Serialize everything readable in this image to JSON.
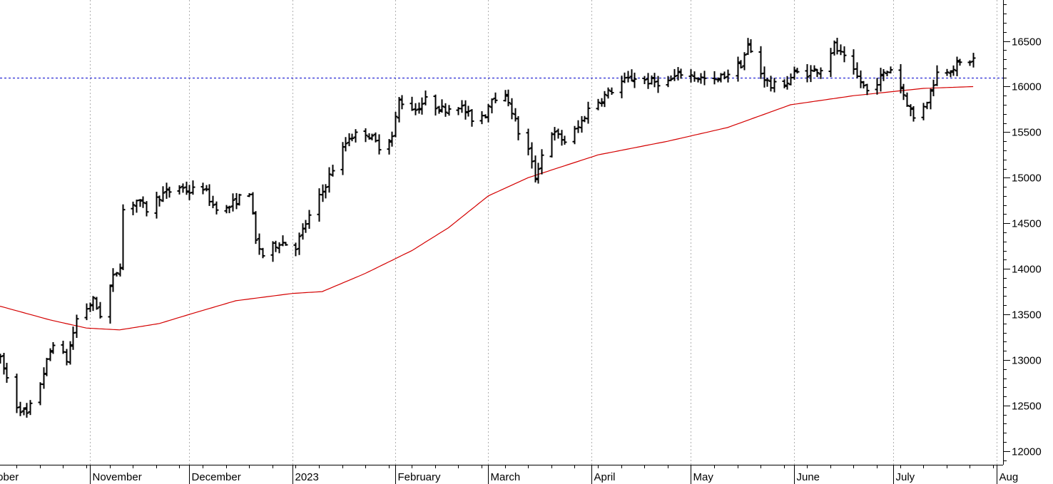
{
  "chart_data": {
    "type": "ohlc",
    "title": "",
    "xlabel": "",
    "ylabel": "",
    "ylim": [
      11850,
      16950
    ],
    "y_ticks": [
      12000,
      12500,
      13000,
      13500,
      14000,
      14500,
      15000,
      15500,
      16000,
      16500
    ],
    "y_tick_labels": [
      "12000",
      "12500",
      "13000",
      "13500",
      "14000",
      "14500",
      "15000",
      "15500",
      "16000",
      "16500"
    ],
    "x_month_labels": [
      {
        "label": "ctober",
        "date": "2022-10-01"
      },
      {
        "label": "November",
        "date": "2022-11-01"
      },
      {
        "label": "December",
        "date": "2022-12-01"
      },
      {
        "label": "2023",
        "date": "2023-01-01"
      },
      {
        "label": "February",
        "date": "2023-02-01"
      },
      {
        "label": "March",
        "date": "2023-03-01"
      },
      {
        "label": "April",
        "date": "2023-04-01"
      },
      {
        "label": "May",
        "date": "2023-05-01"
      },
      {
        "label": "June",
        "date": "2023-06-01"
      },
      {
        "label": "July",
        "date": "2023-07-01"
      },
      {
        "label": "Aug",
        "date": "2023-08-01"
      }
    ],
    "x_range": [
      "2022-10-05",
      "2023-08-03"
    ],
    "vertical_grid_dates": [
      "2022-11-01",
      "2022-12-01",
      "2023-01-01",
      "2023-02-01",
      "2023-03-01",
      "2023-04-01",
      "2023-05-01",
      "2023-06-01",
      "2023-07-01",
      "2023-08-01"
    ],
    "reference_line": {
      "value": 16100
    },
    "grid": true,
    "colors": {
      "price": "#000000",
      "moving_average": "#d40000",
      "reference": "#0000cc",
      "grid": "#b0b0b0"
    },
    "price_keypoints": [
      [
        "2022-10-05",
        13000
      ],
      [
        "2022-10-10",
        12500
      ],
      [
        "2022-10-13",
        12400
      ],
      [
        "2022-10-17",
        12750
      ],
      [
        "2022-10-21",
        13200
      ],
      [
        "2022-10-25",
        13000
      ],
      [
        "2022-10-28",
        13450
      ],
      [
        "2022-11-02",
        13650
      ],
      [
        "2022-11-04",
        13500
      ],
      [
        "2022-11-08",
        13900
      ],
      [
        "2022-11-10",
        14050
      ],
      [
        "2022-11-11",
        14650
      ],
      [
        "2022-11-15",
        14750
      ],
      [
        "2022-11-18",
        14650
      ],
      [
        "2022-11-22",
        14800
      ],
      [
        "2022-11-28",
        14900
      ],
      [
        "2022-12-01",
        14850
      ],
      [
        "2022-12-05",
        14900
      ],
      [
        "2022-12-08",
        14700
      ],
      [
        "2022-12-12",
        14650
      ],
      [
        "2022-12-15",
        14750
      ],
      [
        "2022-12-19",
        14850
      ],
      [
        "2022-12-21",
        14300
      ],
      [
        "2022-12-23",
        14150
      ],
      [
        "2022-12-28",
        14300
      ],
      [
        "2023-01-02",
        14250
      ],
      [
        "2023-01-05",
        14500
      ],
      [
        "2023-01-10",
        14850
      ],
      [
        "2023-01-13",
        15100
      ],
      [
        "2023-01-18",
        15450
      ],
      [
        "2023-01-23",
        15500
      ],
      [
        "2023-01-27",
        15350
      ],
      [
        "2023-01-31",
        15450
      ],
      [
        "2023-02-02",
        15850
      ],
      [
        "2023-02-07",
        15750
      ],
      [
        "2023-02-10",
        15850
      ],
      [
        "2023-02-15",
        15750
      ],
      [
        "2023-02-20",
        15800
      ],
      [
        "2023-02-24",
        15650
      ],
      [
        "2023-02-28",
        15700
      ],
      [
        "2023-03-02",
        15900
      ],
      [
        "2023-03-07",
        15850
      ],
      [
        "2023-03-10",
        15500
      ],
      [
        "2023-03-13",
        15300
      ],
      [
        "2023-03-15",
        15000
      ],
      [
        "2023-03-17",
        15250
      ],
      [
        "2023-03-20",
        15500
      ],
      [
        "2023-03-24",
        15400
      ],
      [
        "2023-03-28",
        15550
      ],
      [
        "2023-03-31",
        15750
      ],
      [
        "2023-04-05",
        15900
      ],
      [
        "2023-04-10",
        16050
      ],
      [
        "2023-04-14",
        16100
      ],
      [
        "2023-04-19",
        16050
      ],
      [
        "2023-04-24",
        16050
      ],
      [
        "2023-04-28",
        16150
      ],
      [
        "2023-05-03",
        16100
      ],
      [
        "2023-05-08",
        16050
      ],
      [
        "2023-05-12",
        16150
      ],
      [
        "2023-05-16",
        16250
      ],
      [
        "2023-05-18",
        16450
      ],
      [
        "2023-05-22",
        16150
      ],
      [
        "2023-05-25",
        16000
      ],
      [
        "2023-05-30",
        16050
      ],
      [
        "2023-06-01",
        16150
      ],
      [
        "2023-06-05",
        16150
      ],
      [
        "2023-06-09",
        16200
      ],
      [
        "2023-06-13",
        16450
      ],
      [
        "2023-06-16",
        16300
      ],
      [
        "2023-06-20",
        16100
      ],
      [
        "2023-06-23",
        15950
      ],
      [
        "2023-06-27",
        16100
      ],
      [
        "2023-06-30",
        16200
      ],
      [
        "2023-07-03",
        16000
      ],
      [
        "2023-07-07",
        15650
      ],
      [
        "2023-07-11",
        15850
      ],
      [
        "2023-07-14",
        16150
      ],
      [
        "2023-07-18",
        16200
      ],
      [
        "2023-07-21",
        16250
      ],
      [
        "2023-07-25",
        16300
      ]
    ],
    "moving_average_keypoints": [
      [
        "2022-10-05",
        13590
      ],
      [
        "2022-10-20",
        13440
      ],
      [
        "2022-10-31",
        13350
      ],
      [
        "2022-11-10",
        13330
      ],
      [
        "2022-11-22",
        13400
      ],
      [
        "2022-12-01",
        13500
      ],
      [
        "2022-12-15",
        13650
      ],
      [
        "2023-01-01",
        13730
      ],
      [
        "2023-01-10",
        13750
      ],
      [
        "2023-01-23",
        13950
      ],
      [
        "2023-02-06",
        14200
      ],
      [
        "2023-02-17",
        14450
      ],
      [
        "2023-03-01",
        14800
      ],
      [
        "2023-03-13",
        15000
      ],
      [
        "2023-04-03",
        15250
      ],
      [
        "2023-04-24",
        15400
      ],
      [
        "2023-05-12",
        15550
      ],
      [
        "2023-05-31",
        15800
      ],
      [
        "2023-06-19",
        15900
      ],
      [
        "2023-07-10",
        15980
      ],
      [
        "2023-07-25",
        16000
      ]
    ]
  }
}
